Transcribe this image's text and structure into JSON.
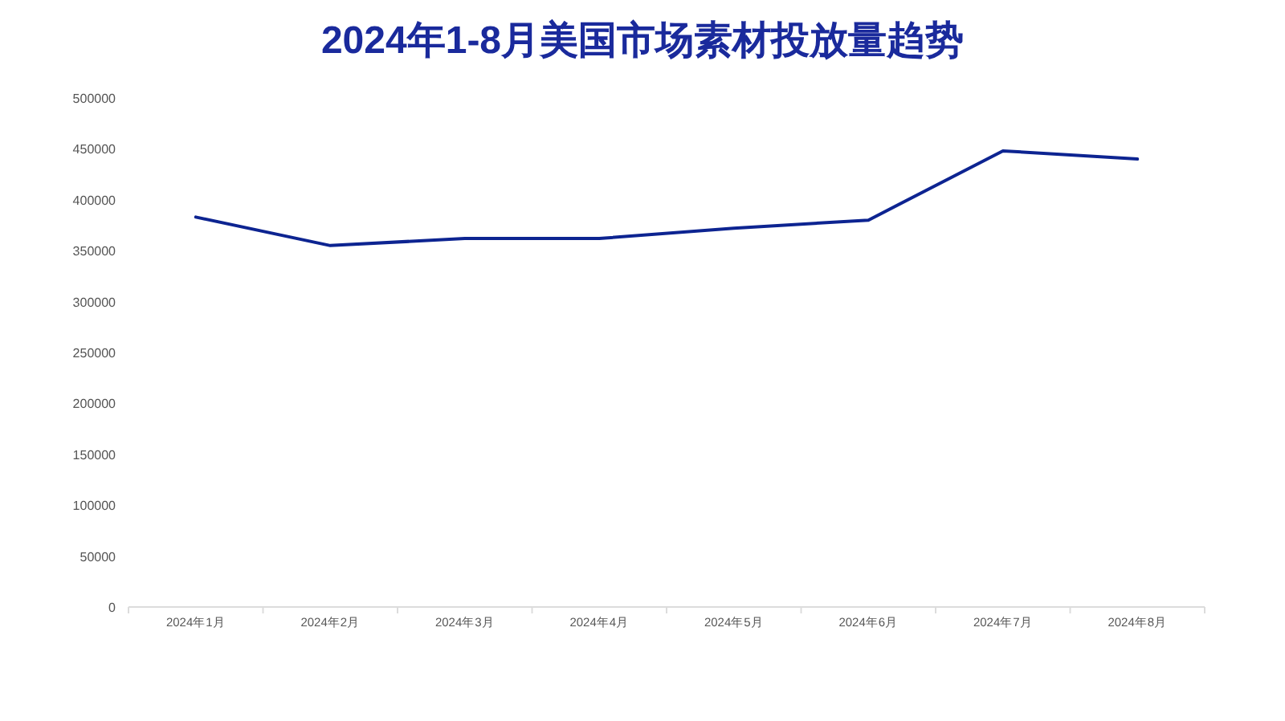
{
  "chart_data": {
    "type": "line",
    "title": "2024年1-8月美国市场素材投放量趋势",
    "categories": [
      "2024年1月",
      "2024年2月",
      "2024年3月",
      "2024年4月",
      "2024年5月",
      "2024年6月",
      "2024年7月",
      "2024年8月"
    ],
    "series": [
      {
        "color": "#0d2491",
        "values": [
          383000,
          355000,
          362000,
          362000,
          372000,
          380000,
          448000,
          440000
        ]
      }
    ],
    "ylim": [
      0,
      500000
    ],
    "yticks": [
      0,
      50000,
      100000,
      150000,
      200000,
      250000,
      300000,
      350000,
      400000,
      450000,
      500000
    ],
    "marker": "none",
    "line_style": "solid"
  }
}
